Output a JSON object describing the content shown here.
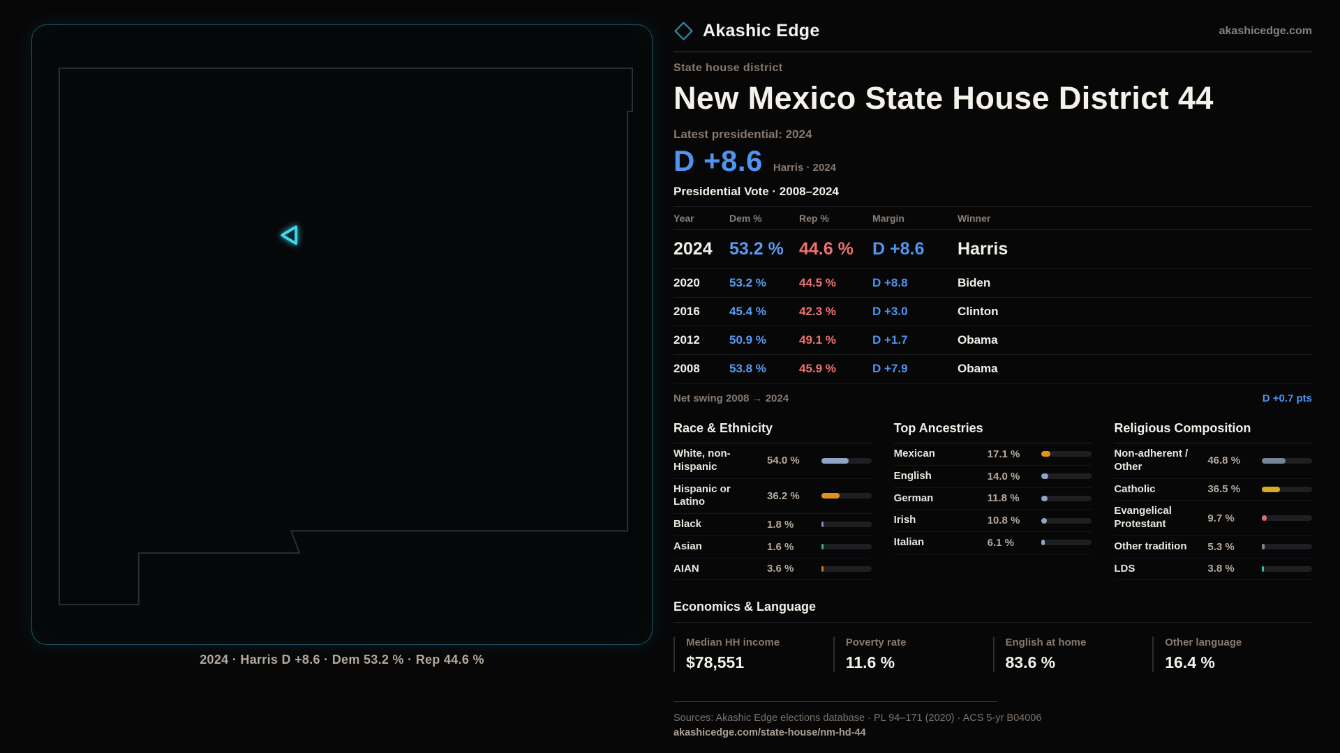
{
  "brand": {
    "name": "Akashic Edge",
    "domain": "akashicedge.com",
    "logo_icon": "diamond-outline",
    "accent_color": "#2e8fa3"
  },
  "map": {
    "caption": "2024 · Harris D +8.6 · Dem 53.2 % · Rep 44.6 %",
    "region": "New Mexico state outline",
    "marker": "district-location-triangle",
    "marker_color": "#3fd6ec"
  },
  "header": {
    "eyebrow": "State house district",
    "title": "New Mexico State House District 44",
    "latest_label": "Latest presidential: 2024",
    "margin_value": "D +8.6",
    "margin_caption": "Harris · 2024",
    "table_title": "Presidential Vote · 2008–2024"
  },
  "results_table": {
    "columns": [
      "Year",
      "Dem %",
      "Rep %",
      "Margin",
      "Winner"
    ],
    "rows": [
      {
        "year": "2024",
        "dem": "53.2 %",
        "rep": "44.6 %",
        "margin": "D +8.6",
        "winner": "Harris"
      },
      {
        "year": "2020",
        "dem": "53.2 %",
        "rep": "44.5 %",
        "margin": "D +8.8",
        "winner": "Biden"
      },
      {
        "year": "2016",
        "dem": "45.4 %",
        "rep": "42.3 %",
        "margin": "D +3.0",
        "winner": "Clinton"
      },
      {
        "year": "2012",
        "dem": "50.9 %",
        "rep": "49.1 %",
        "margin": "D +1.7",
        "winner": "Obama"
      },
      {
        "year": "2008",
        "dem": "53.8 %",
        "rep": "45.9 %",
        "margin": "D +7.9",
        "winner": "Obama"
      }
    ],
    "net_swing_label": "Net swing 2008 → 2024",
    "net_swing_value": "D +0.7 pts",
    "dem_color": "#5b9bf0",
    "rep_color": "#ee7272",
    "margin_color": "#4f94ef"
  },
  "demographics": [
    {
      "title": "Race & Ethnicity",
      "rows": [
        {
          "label": "White, non-Hispanic",
          "value": "54.0 %",
          "pct": 54.0,
          "color": "#8ea6c4"
        },
        {
          "label": "Hispanic or Latino",
          "value": "36.2 %",
          "pct": 36.2,
          "color": "#e0931c"
        },
        {
          "label": "Black",
          "value": "1.8 %",
          "pct": 1.8,
          "color": "#8b7fd6"
        },
        {
          "label": "Asian",
          "value": "1.6 %",
          "pct": 1.6,
          "color": "#3fae7e"
        },
        {
          "label": "AIAN",
          "value": "3.6 %",
          "pct": 3.6,
          "color": "#c8761d"
        }
      ]
    },
    {
      "title": "Top Ancestries",
      "rows": [
        {
          "label": "Mexican",
          "value": "17.1 %",
          "pct": 17.1,
          "color": "#e0931c"
        },
        {
          "label": "English",
          "value": "14.0 %",
          "pct": 14.0,
          "color": "#8ea6c4"
        },
        {
          "label": "German",
          "value": "11.8 %",
          "pct": 11.8,
          "color": "#8ea6c4"
        },
        {
          "label": "Irish",
          "value": "10.8 %",
          "pct": 10.8,
          "color": "#8ea6c4"
        },
        {
          "label": "Italian",
          "value": "6.1 %",
          "pct": 6.1,
          "color": "#8ea6c4"
        }
      ]
    },
    {
      "title": "Religious Composition",
      "rows": [
        {
          "label": "Non-adherent / Other",
          "value": "46.8 %",
          "pct": 46.8,
          "color": "#76849a"
        },
        {
          "label": "Catholic",
          "value": "36.5 %",
          "pct": 36.5,
          "color": "#d9a826"
        },
        {
          "label": "Evangelical Protestant",
          "value": "9.7 %",
          "pct": 9.7,
          "color": "#e06c6c"
        },
        {
          "label": "Other tradition",
          "value": "5.3 %",
          "pct": 5.3,
          "color": "#7e848e"
        },
        {
          "label": "LDS",
          "value": "3.8 %",
          "pct": 3.8,
          "color": "#2fbfae"
        }
      ]
    }
  ],
  "economics": {
    "title": "Economics & Language",
    "stats": [
      {
        "label": "Median HH income",
        "value": "$78,551"
      },
      {
        "label": "Poverty rate",
        "value": "11.6 %"
      },
      {
        "label": "English at home",
        "value": "83.6 %"
      },
      {
        "label": "Other language",
        "value": "16.4 %"
      }
    ]
  },
  "footer": {
    "sources": "Sources: Akashic Edge elections database · PL 94–171 (2020) · ACS 5-yr B04006",
    "permalink": "akashicedge.com/state-house/nm-hd-44"
  }
}
